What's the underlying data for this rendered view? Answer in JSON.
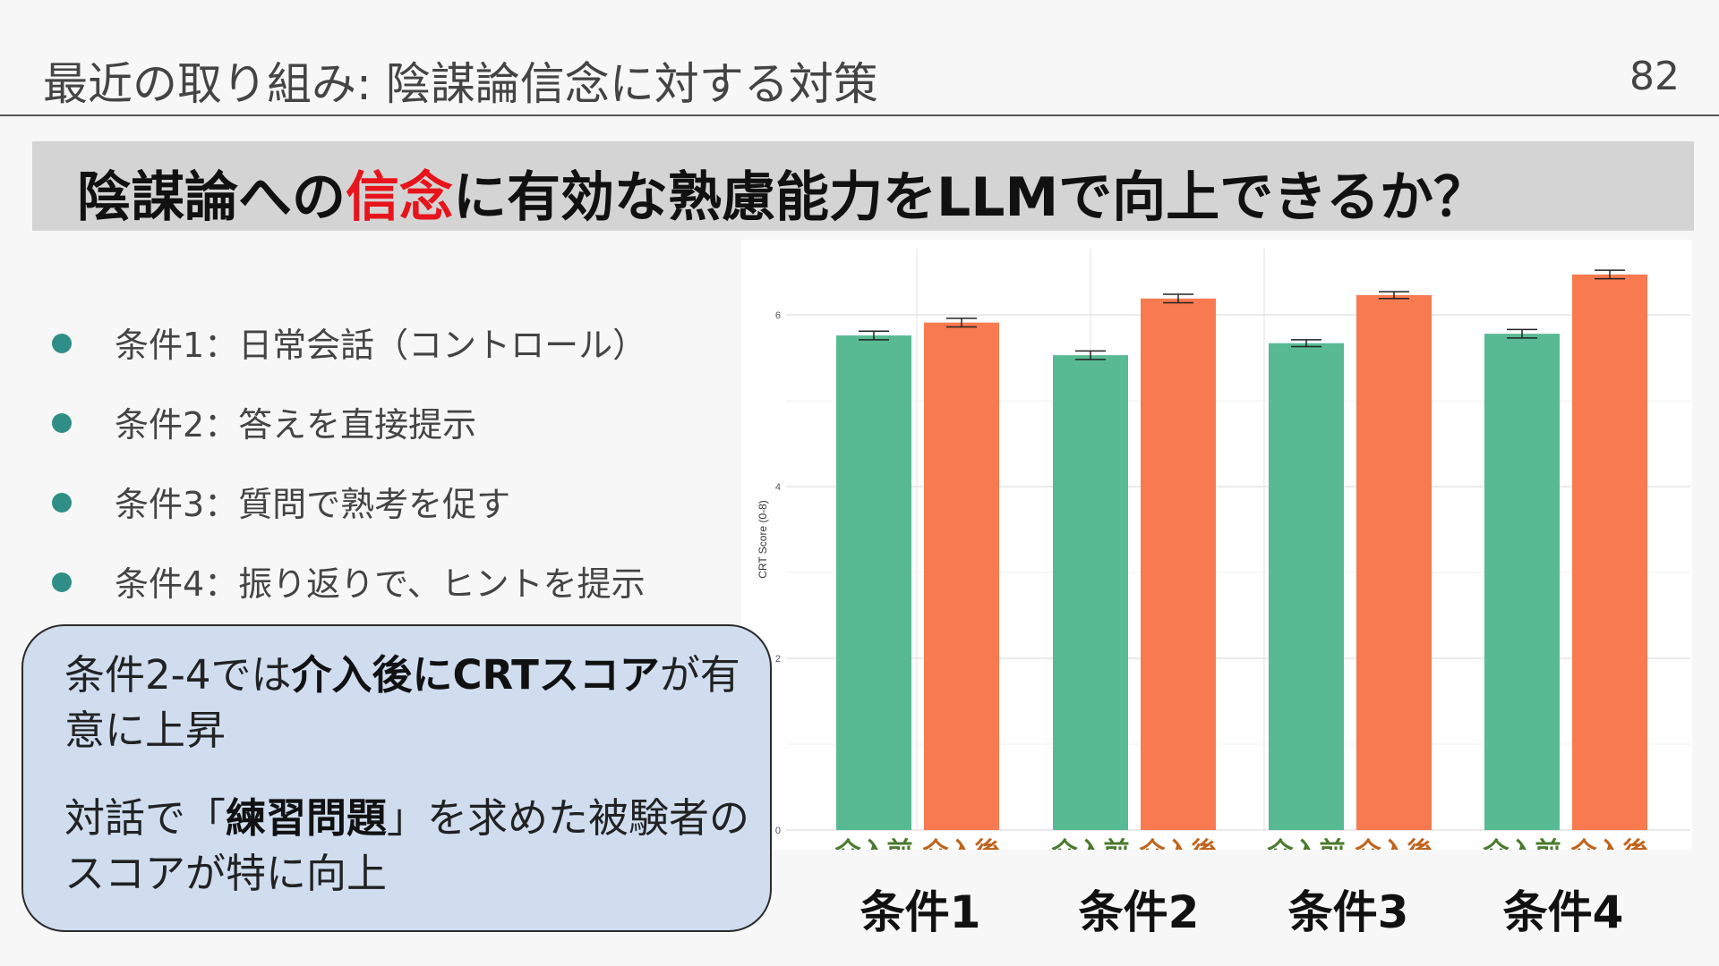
{
  "header": {
    "title": "最近の取り組み: 陰謀論信念に対する対策",
    "page_number": "82"
  },
  "banner": {
    "prefix": "陰謀論への",
    "highlight": "信念",
    "suffix": "に有効な熟慮能力をLLMで向上できるか？",
    "highlight_color": "#e8141b"
  },
  "bullets": [
    "条件1：日常会話（コントロール）",
    "条件2：答えを直接提示",
    "条件3：質問で熟考を促す",
    "条件4：振り返りで、ヒントを提示"
  ],
  "callout": {
    "p1": {
      "a": "条件2-4では",
      "b": "介入後にCRTスコア",
      "c": "が有意に上昇"
    },
    "p2": {
      "a": "対話で「",
      "b": "練習問題",
      "c": "」を求めた被験者のスコアが特に向上"
    }
  },
  "chart_data": {
    "type": "bar",
    "ylabel": "CRT Score (0-8)",
    "yticks": [
      "0",
      "2",
      "4",
      "6"
    ],
    "ylim": [
      0,
      6.5
    ],
    "grid": true,
    "categories": [
      "条件1",
      "条件2",
      "条件3",
      "条件4"
    ],
    "bar_labels": [
      "介入前",
      "介入後"
    ],
    "series": [
      {
        "name": "介入前",
        "color": "#58ba93",
        "label_color": "#4a7a2c",
        "values": [
          5.76,
          5.53,
          5.67,
          5.78
        ],
        "error": [
          0.05,
          0.05,
          0.04,
          0.05
        ]
      },
      {
        "name": "介入後",
        "color": "#f77a50",
        "label_color": "#c0631c",
        "values": [
          5.91,
          6.19,
          6.23,
          6.47
        ],
        "error": [
          0.05,
          0.05,
          0.04,
          0.05
        ]
      }
    ]
  }
}
